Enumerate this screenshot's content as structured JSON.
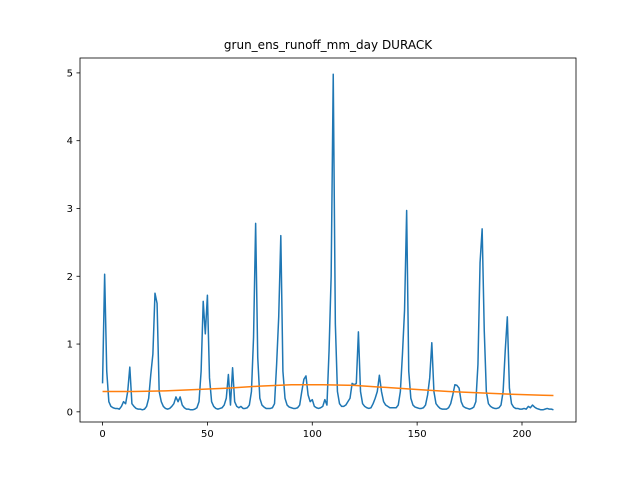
{
  "chart_data": {
    "type": "line",
    "title": "grun_ens_runoff_mm_day DURACK",
    "xlim": [
      -10.75,
      225.75
    ],
    "ylim": [
      -0.15,
      5.22
    ],
    "xticks": [
      0,
      50,
      100,
      150,
      200
    ],
    "yticks": [
      0,
      1,
      2,
      3,
      4,
      5
    ],
    "grid": false,
    "series": [
      {
        "color": "#1f77b4",
        "x": [
          0,
          1,
          2,
          3,
          4,
          5,
          6,
          7,
          8,
          9,
          10,
          11,
          12,
          13,
          14,
          15,
          16,
          17,
          18,
          19,
          20,
          21,
          22,
          23,
          24,
          25,
          26,
          27,
          28,
          29,
          30,
          31,
          32,
          33,
          34,
          35,
          36,
          37,
          38,
          39,
          40,
          41,
          42,
          43,
          44,
          45,
          46,
          47,
          48,
          49,
          50,
          51,
          52,
          53,
          54,
          55,
          56,
          57,
          58,
          59,
          60,
          61,
          62,
          63,
          64,
          65,
          66,
          67,
          68,
          69,
          70,
          71,
          72,
          73,
          74,
          75,
          76,
          77,
          78,
          79,
          80,
          81,
          82,
          83,
          84,
          85,
          86,
          87,
          88,
          89,
          90,
          91,
          92,
          93,
          94,
          95,
          96,
          97,
          98,
          99,
          100,
          101,
          102,
          103,
          104,
          105,
          106,
          107,
          108,
          109,
          110,
          111,
          112,
          113,
          114,
          115,
          116,
          117,
          118,
          119,
          120,
          121,
          122,
          123,
          124,
          125,
          126,
          127,
          128,
          129,
          130,
          131,
          132,
          133,
          134,
          135,
          136,
          137,
          138,
          139,
          140,
          141,
          142,
          143,
          144,
          145,
          146,
          147,
          148,
          149,
          150,
          151,
          152,
          153,
          154,
          155,
          156,
          157,
          158,
          159,
          160,
          161,
          162,
          163,
          164,
          165,
          166,
          167,
          168,
          169,
          170,
          171,
          172,
          173,
          174,
          175,
          176,
          177,
          178,
          179,
          180,
          181,
          182,
          183,
          184,
          185,
          186,
          187,
          188,
          189,
          190,
          191,
          192,
          193,
          194,
          195,
          196,
          197,
          198,
          199,
          200,
          201,
          202,
          203,
          204,
          205,
          206,
          207,
          208,
          209,
          210,
          211,
          212,
          213,
          214,
          215
        ],
        "values": [
          0.42,
          2.03,
          0.6,
          0.15,
          0.08,
          0.06,
          0.05,
          0.05,
          0.04,
          0.08,
          0.15,
          0.12,
          0.3,
          0.66,
          0.12,
          0.08,
          0.05,
          0.04,
          0.04,
          0.03,
          0.04,
          0.08,
          0.2,
          0.55,
          0.85,
          1.75,
          1.6,
          0.3,
          0.15,
          0.08,
          0.05,
          0.04,
          0.05,
          0.08,
          0.12,
          0.22,
          0.15,
          0.22,
          0.1,
          0.06,
          0.04,
          0.04,
          0.03,
          0.03,
          0.04,
          0.06,
          0.15,
          0.6,
          1.63,
          1.15,
          1.72,
          0.5,
          0.15,
          0.08,
          0.05,
          0.04,
          0.05,
          0.06,
          0.1,
          0.2,
          0.55,
          0.1,
          0.65,
          0.15,
          0.08,
          0.06,
          0.08,
          0.05,
          0.05,
          0.06,
          0.1,
          0.3,
          1.1,
          2.78,
          0.8,
          0.2,
          0.1,
          0.07,
          0.05,
          0.05,
          0.05,
          0.06,
          0.12,
          0.7,
          1.4,
          2.6,
          0.6,
          0.2,
          0.1,
          0.07,
          0.06,
          0.05,
          0.05,
          0.06,
          0.1,
          0.3,
          0.48,
          0.53,
          0.25,
          0.15,
          0.18,
          0.08,
          0.06,
          0.05,
          0.06,
          0.08,
          0.18,
          0.1,
          0.9,
          2.0,
          4.98,
          1.3,
          0.3,
          0.12,
          0.08,
          0.08,
          0.1,
          0.15,
          0.2,
          0.42,
          0.4,
          0.42,
          1.18,
          0.3,
          0.12,
          0.08,
          0.06,
          0.05,
          0.06,
          0.12,
          0.2,
          0.3,
          0.54,
          0.3,
          0.15,
          0.1,
          0.08,
          0.06,
          0.06,
          0.06,
          0.06,
          0.1,
          0.3,
          0.85,
          1.5,
          2.97,
          0.6,
          0.2,
          0.1,
          0.07,
          0.06,
          0.05,
          0.05,
          0.06,
          0.1,
          0.25,
          0.5,
          1.02,
          0.3,
          0.12,
          0.08,
          0.05,
          0.04,
          0.04,
          0.04,
          0.06,
          0.12,
          0.25,
          0.4,
          0.39,
          0.35,
          0.15,
          0.08,
          0.06,
          0.05,
          0.04,
          0.05,
          0.07,
          0.15,
          0.7,
          2.2,
          2.7,
          1.2,
          0.3,
          0.12,
          0.08,
          0.06,
          0.05,
          0.05,
          0.06,
          0.1,
          0.3,
          0.9,
          1.4,
          0.35,
          0.12,
          0.07,
          0.05,
          0.05,
          0.04,
          0.04,
          0.05,
          0.04,
          0.08,
          0.06,
          0.1,
          0.07,
          0.05,
          0.04,
          0.03,
          0.03,
          0.04,
          0.05,
          0.04,
          0.04,
          0.03
        ]
      },
      {
        "color": "#ff7f0e",
        "x": [
          0,
          15,
          30,
          45,
          60,
          75,
          90,
          105,
          120,
          135,
          150,
          165,
          180,
          195,
          210,
          215
        ],
        "values": [
          0.3,
          0.3,
          0.31,
          0.33,
          0.35,
          0.38,
          0.4,
          0.4,
          0.39,
          0.36,
          0.33,
          0.3,
          0.28,
          0.26,
          0.245,
          0.24
        ]
      }
    ]
  }
}
